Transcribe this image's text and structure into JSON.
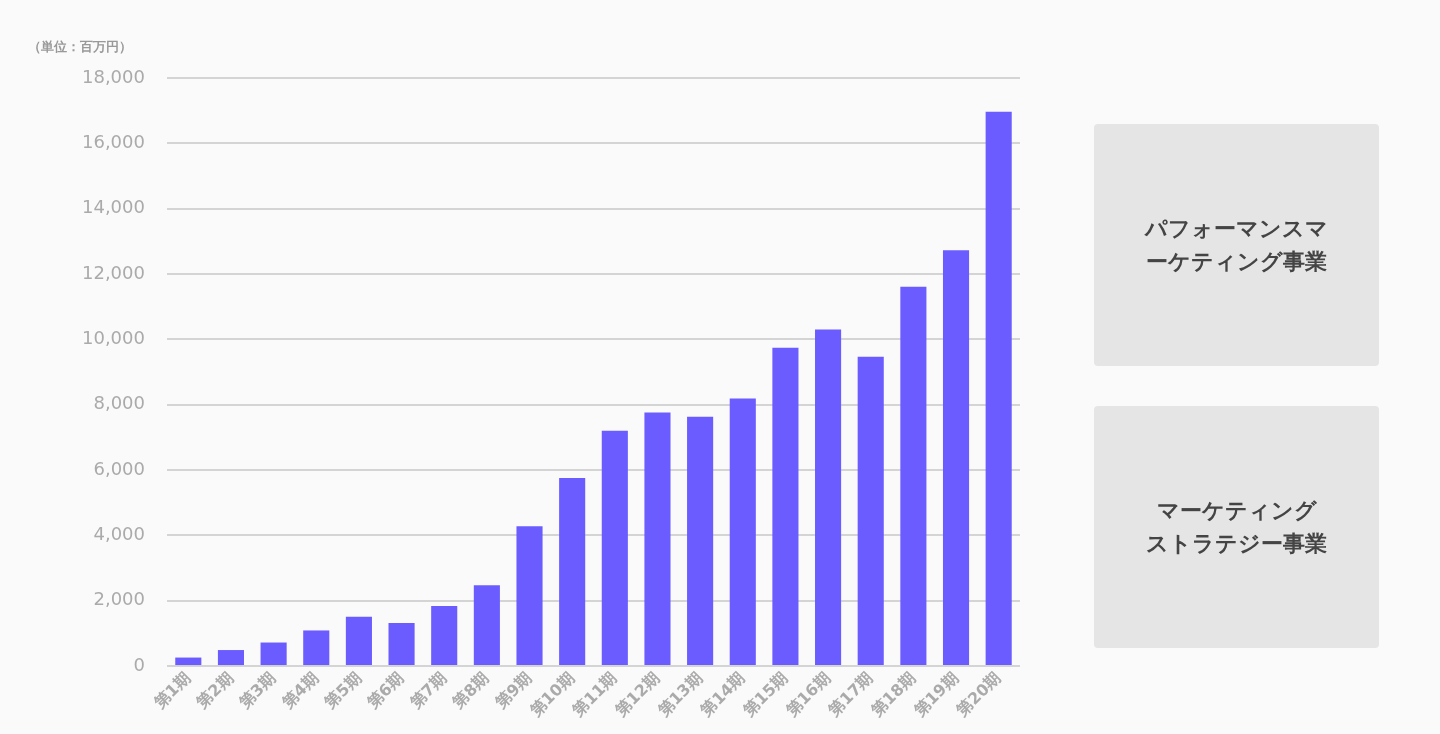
{
  "chart_data": [
    {
      "type": "bar",
      "ylabel": "（単位：百万円）",
      "categories": [
        "第1期",
        "第2期",
        "第3期",
        "第4期",
        "第5期",
        "第6期",
        "第7期",
        "第8期",
        "第9期",
        "第10期",
        "第11期",
        "第12期",
        "第13期",
        "第14期",
        "第15期",
        "第16期",
        "第17期",
        "第18期",
        "第19期",
        "第20期"
      ],
      "values": [
        260,
        490,
        720,
        1090,
        1510,
        1320,
        1840,
        2470,
        4280,
        5760,
        7200,
        7760,
        7630,
        8190,
        9740,
        10300,
        9470,
        11610,
        12730,
        16970
      ],
      "color": "#6a5cff",
      "ylim": [
        0,
        18000
      ],
      "yticks": [
        0,
        {
          "value": 2000,
          "label": "2,000"
        },
        {
          "value": 4000,
          "label": "4,000"
        },
        {
          "value": 6000,
          "label": "6,000"
        },
        {
          "value": 8000,
          "label": "8,000"
        },
        {
          "value": 10000,
          "label": "10,000"
        },
        {
          "value": 12000,
          "label": "12,000"
        },
        {
          "value": 14000,
          "label": "14,000"
        },
        {
          "value": 16000,
          "label": "16,000"
        },
        {
          "value": 18000,
          "label": "18,000"
        }
      ],
      "grid": "y",
      "legend": false
    },
    {
      "type": "other",
      "annotations": [
        "パフォーマンスマーケティング事業",
        "マーケティングストラテジー事業"
      ]
    }
  ]
}
